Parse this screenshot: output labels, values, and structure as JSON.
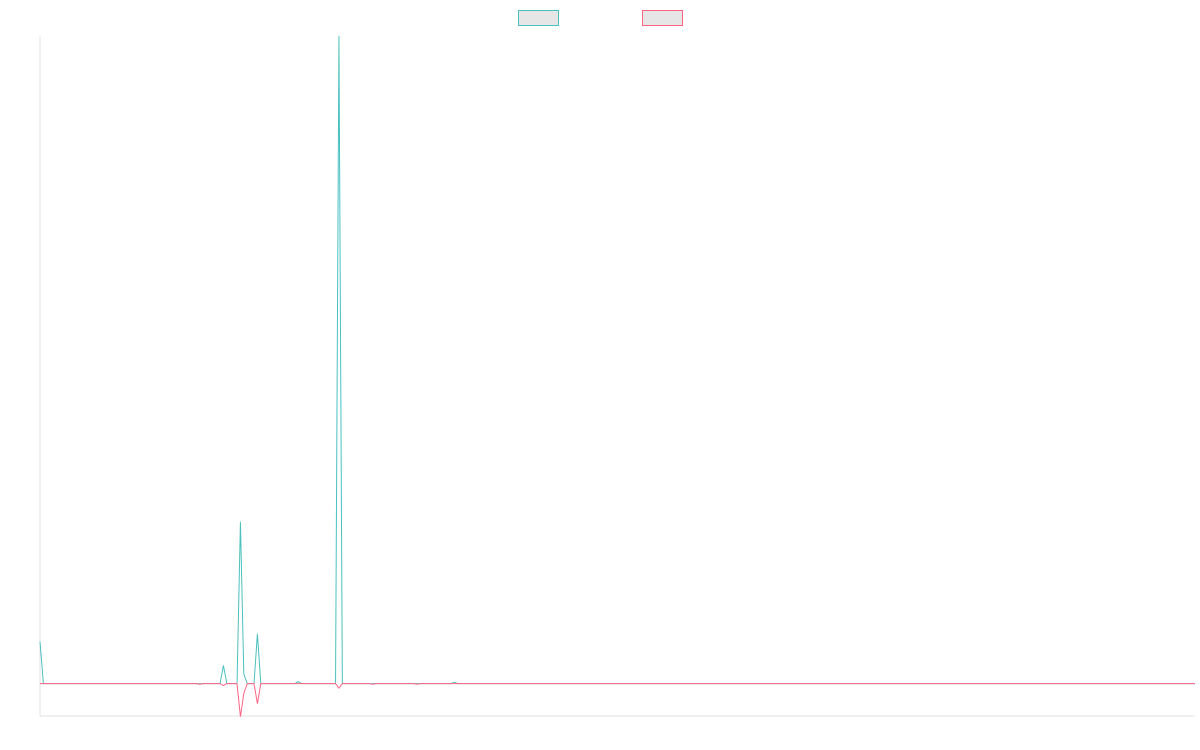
{
  "chart_data": {
    "type": "line",
    "xlim": [
      0,
      340
    ],
    "ylim": [
      -5,
      100
    ],
    "series": [
      {
        "color": "#4bc0c0",
        "x": [
          0,
          1,
          53,
          54,
          55,
          58,
          59,
          60,
          61,
          63,
          64,
          65,
          75,
          76,
          77,
          87,
          88,
          89,
          121,
          122,
          123,
          340
        ],
        "values": [
          6.5,
          0,
          0,
          2.8,
          0,
          0,
          25,
          1.5,
          0,
          0,
          7.7,
          0,
          0,
          0.3,
          0,
          0,
          100,
          0,
          0,
          0.2,
          0,
          0
        ]
      },
      {
        "color": "#ff6384",
        "x": [
          0,
          46,
          47,
          48,
          53,
          54,
          55,
          58,
          59,
          60,
          61,
          63,
          64,
          65,
          87,
          88,
          89,
          97,
          98,
          99,
          110,
          111,
          112,
          340
        ],
        "values": [
          0,
          0,
          -0.1,
          0,
          0,
          -0.3,
          0,
          0,
          -5.1,
          -1.5,
          0,
          0,
          -3.1,
          0,
          0,
          -0.7,
          0,
          0,
          -0.1,
          0,
          0,
          -0.1,
          0,
          0
        ]
      }
    ]
  }
}
